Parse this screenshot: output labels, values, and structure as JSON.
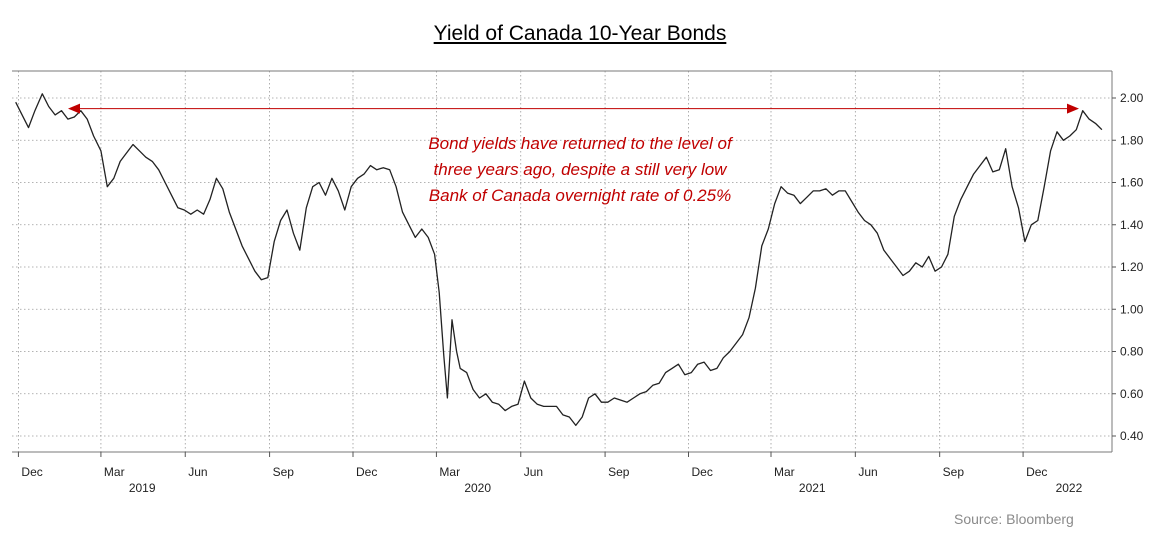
{
  "chart_data": {
    "type": "line",
    "title": "Yield of Canada 10-Year Bonds",
    "xlabel": "",
    "ylabel": "",
    "ylim": [
      0.3,
      2.08
    ],
    "yticks": [
      "2.00",
      "1.80",
      "1.60",
      "1.40",
      "1.20",
      "1.00",
      "0.80",
      "0.60",
      "0.40"
    ],
    "x_ticks": [
      "Dec",
      "Mar",
      "Jun",
      "Sep",
      "Dec",
      "Mar",
      "Jun",
      "Sep",
      "Dec",
      "Mar",
      "Jun",
      "Sep",
      "Dec"
    ],
    "year_labels": [
      "2019",
      "2020",
      "2021",
      "2022"
    ],
    "grid": true,
    "annotation": [
      "Bond yields have returned to the level of",
      "three years ago, despite a still very low",
      "Bank of Canada overnight rate of 0.25%"
    ],
    "annotation_arrow_level": 1.95,
    "source": "Source: Bloomberg",
    "colors": {
      "line": "#222222",
      "annotation": "#c00000",
      "grid": "#9a9a9a"
    },
    "series": [
      {
        "x": [
          "2018-11-28",
          "2018-12-05",
          "2018-12-12",
          "2018-12-19",
          "2018-12-27",
          "2019-01-03",
          "2019-01-10",
          "2019-01-17",
          "2019-01-24",
          "2019-01-31",
          "2019-02-07",
          "2019-02-14",
          "2019-02-21",
          "2019-03-01",
          "2019-03-08",
          "2019-03-15",
          "2019-03-22",
          "2019-03-29",
          "2019-04-05",
          "2019-04-12",
          "2019-04-19",
          "2019-04-26",
          "2019-05-03",
          "2019-05-10",
          "2019-05-17",
          "2019-05-24",
          "2019-05-31",
          "2019-06-07",
          "2019-06-14",
          "2019-06-21",
          "2019-06-28",
          "2019-07-05",
          "2019-07-12",
          "2019-07-19",
          "2019-07-26",
          "2019-08-02",
          "2019-08-09",
          "2019-08-16",
          "2019-08-23",
          "2019-08-30",
          "2019-09-06",
          "2019-09-13",
          "2019-09-20",
          "2019-09-27",
          "2019-10-04",
          "2019-10-11",
          "2019-10-18",
          "2019-10-25",
          "2019-11-01",
          "2019-11-08",
          "2019-11-15",
          "2019-11-22",
          "2019-11-29",
          "2019-12-06",
          "2019-12-13",
          "2019-12-20",
          "2019-12-27",
          "2020-01-03",
          "2020-01-10",
          "2020-01-17",
          "2020-01-24",
          "2020-01-31",
          "2020-02-07",
          "2020-02-14",
          "2020-02-21",
          "2020-02-28",
          "2020-03-04",
          "2020-03-09",
          "2020-03-13",
          "2020-03-18",
          "2020-03-23",
          "2020-03-27",
          "2020-04-03",
          "2020-04-10",
          "2020-04-17",
          "2020-04-24",
          "2020-05-01",
          "2020-05-08",
          "2020-05-15",
          "2020-05-22",
          "2020-05-29",
          "2020-06-05",
          "2020-06-12",
          "2020-06-19",
          "2020-06-26",
          "2020-07-03",
          "2020-07-10",
          "2020-07-17",
          "2020-07-24",
          "2020-07-31",
          "2020-08-07",
          "2020-08-14",
          "2020-08-21",
          "2020-08-28",
          "2020-09-04",
          "2020-09-11",
          "2020-09-18",
          "2020-09-25",
          "2020-10-02",
          "2020-10-09",
          "2020-10-16",
          "2020-10-23",
          "2020-10-30",
          "2020-11-06",
          "2020-11-13",
          "2020-11-20",
          "2020-11-27",
          "2020-12-04",
          "2020-12-11",
          "2020-12-18",
          "2020-12-25",
          "2021-01-01",
          "2021-01-08",
          "2021-01-15",
          "2021-01-22",
          "2021-01-29",
          "2021-02-05",
          "2021-02-12",
          "2021-02-19",
          "2021-02-26",
          "2021-03-05",
          "2021-03-12",
          "2021-03-19",
          "2021-03-26",
          "2021-04-02",
          "2021-04-09",
          "2021-04-16",
          "2021-04-23",
          "2021-04-30",
          "2021-05-07",
          "2021-05-14",
          "2021-05-21",
          "2021-05-28",
          "2021-06-04",
          "2021-06-11",
          "2021-06-18",
          "2021-06-25",
          "2021-07-02",
          "2021-07-09",
          "2021-07-16",
          "2021-07-23",
          "2021-07-30",
          "2021-08-06",
          "2021-08-13",
          "2021-08-20",
          "2021-08-27",
          "2021-09-03",
          "2021-09-10",
          "2021-09-17",
          "2021-09-24",
          "2021-10-01",
          "2021-10-08",
          "2021-10-15",
          "2021-10-22",
          "2021-10-29",
          "2021-11-05",
          "2021-11-12",
          "2021-11-19",
          "2021-11-26",
          "2021-12-03",
          "2021-12-10",
          "2021-12-17",
          "2021-12-24",
          "2021-12-31",
          "2022-01-07",
          "2022-01-14",
          "2022-01-21",
          "2022-01-28",
          "2022-02-04",
          "2022-02-11",
          "2022-02-18",
          "2022-02-25"
        ],
        "values": [
          1.98,
          1.92,
          1.86,
          1.94,
          2.02,
          1.96,
          1.92,
          1.94,
          1.9,
          1.91,
          1.94,
          1.9,
          1.82,
          1.75,
          1.58,
          1.62,
          1.7,
          1.74,
          1.78,
          1.75,
          1.72,
          1.7,
          1.66,
          1.6,
          1.54,
          1.48,
          1.47,
          1.45,
          1.47,
          1.45,
          1.52,
          1.62,
          1.57,
          1.46,
          1.38,
          1.3,
          1.24,
          1.18,
          1.14,
          1.15,
          1.32,
          1.42,
          1.47,
          1.36,
          1.28,
          1.48,
          1.58,
          1.6,
          1.54,
          1.62,
          1.56,
          1.47,
          1.58,
          1.62,
          1.64,
          1.68,
          1.66,
          1.67,
          1.66,
          1.58,
          1.46,
          1.4,
          1.34,
          1.38,
          1.34,
          1.26,
          1.08,
          0.78,
          0.58,
          0.95,
          0.8,
          0.72,
          0.7,
          0.62,
          0.58,
          0.6,
          0.56,
          0.55,
          0.52,
          0.54,
          0.55,
          0.66,
          0.58,
          0.55,
          0.54,
          0.54,
          0.54,
          0.5,
          0.49,
          0.45,
          0.49,
          0.58,
          0.6,
          0.56,
          0.56,
          0.58,
          0.57,
          0.56,
          0.58,
          0.6,
          0.61,
          0.64,
          0.65,
          0.7,
          0.72,
          0.74,
          0.69,
          0.7,
          0.74,
          0.75,
          0.71,
          0.72,
          0.77,
          0.8,
          0.84,
          0.88,
          0.96,
          1.1,
          1.3,
          1.38,
          1.5,
          1.58,
          1.55,
          1.54,
          1.5,
          1.53,
          1.56,
          1.56,
          1.57,
          1.54,
          1.56,
          1.56,
          1.51,
          1.46,
          1.42,
          1.4,
          1.36,
          1.28,
          1.24,
          1.2,
          1.16,
          1.18,
          1.22,
          1.2,
          1.25,
          1.18,
          1.2,
          1.26,
          1.44,
          1.52,
          1.58,
          1.64,
          1.68,
          1.72,
          1.65,
          1.66,
          1.76,
          1.58,
          1.48,
          1.32,
          1.4,
          1.42,
          1.58,
          1.75,
          1.84,
          1.8,
          1.82,
          1.85,
          1.94,
          1.9,
          1.88,
          1.85
        ]
      }
    ]
  }
}
